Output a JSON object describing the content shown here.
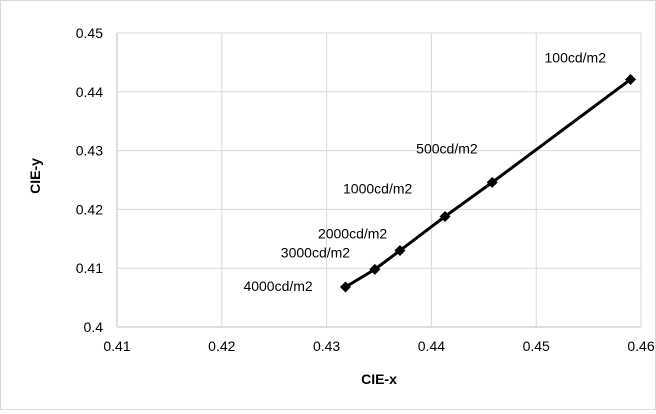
{
  "chart_data": {
    "type": "scatter",
    "title": "",
    "xlabel": "CIE-x",
    "ylabel": "CIE-y",
    "xlim": [
      0.41,
      0.46
    ],
    "ylim": [
      0.4,
      0.45
    ],
    "xticks": [
      "0.41",
      "0.42",
      "0.43",
      "0.44",
      "0.45",
      "0.46"
    ],
    "yticks": [
      "0.4",
      "0.41",
      "0.42",
      "0.43",
      "0.44",
      "0.45"
    ],
    "grid": true,
    "legend": "none",
    "series": [
      {
        "marker": "diamond",
        "line": "solid",
        "color": "#000000",
        "points": [
          {
            "label": "4000cd/m2",
            "x": 0.4318,
            "y": 0.4068
          },
          {
            "label": "3000cd/m2",
            "x": 0.4346,
            "y": 0.4098
          },
          {
            "label": "2000cd/m2",
            "x": 0.437,
            "y": 0.413
          },
          {
            "label": "1000cd/m2",
            "x": 0.4413,
            "y": 0.4188
          },
          {
            "label": "500cd/m2",
            "x": 0.4458,
            "y": 0.4246
          },
          {
            "label": "100cd/m2",
            "x": 0.459,
            "y": 0.4421
          }
        ]
      }
    ]
  }
}
